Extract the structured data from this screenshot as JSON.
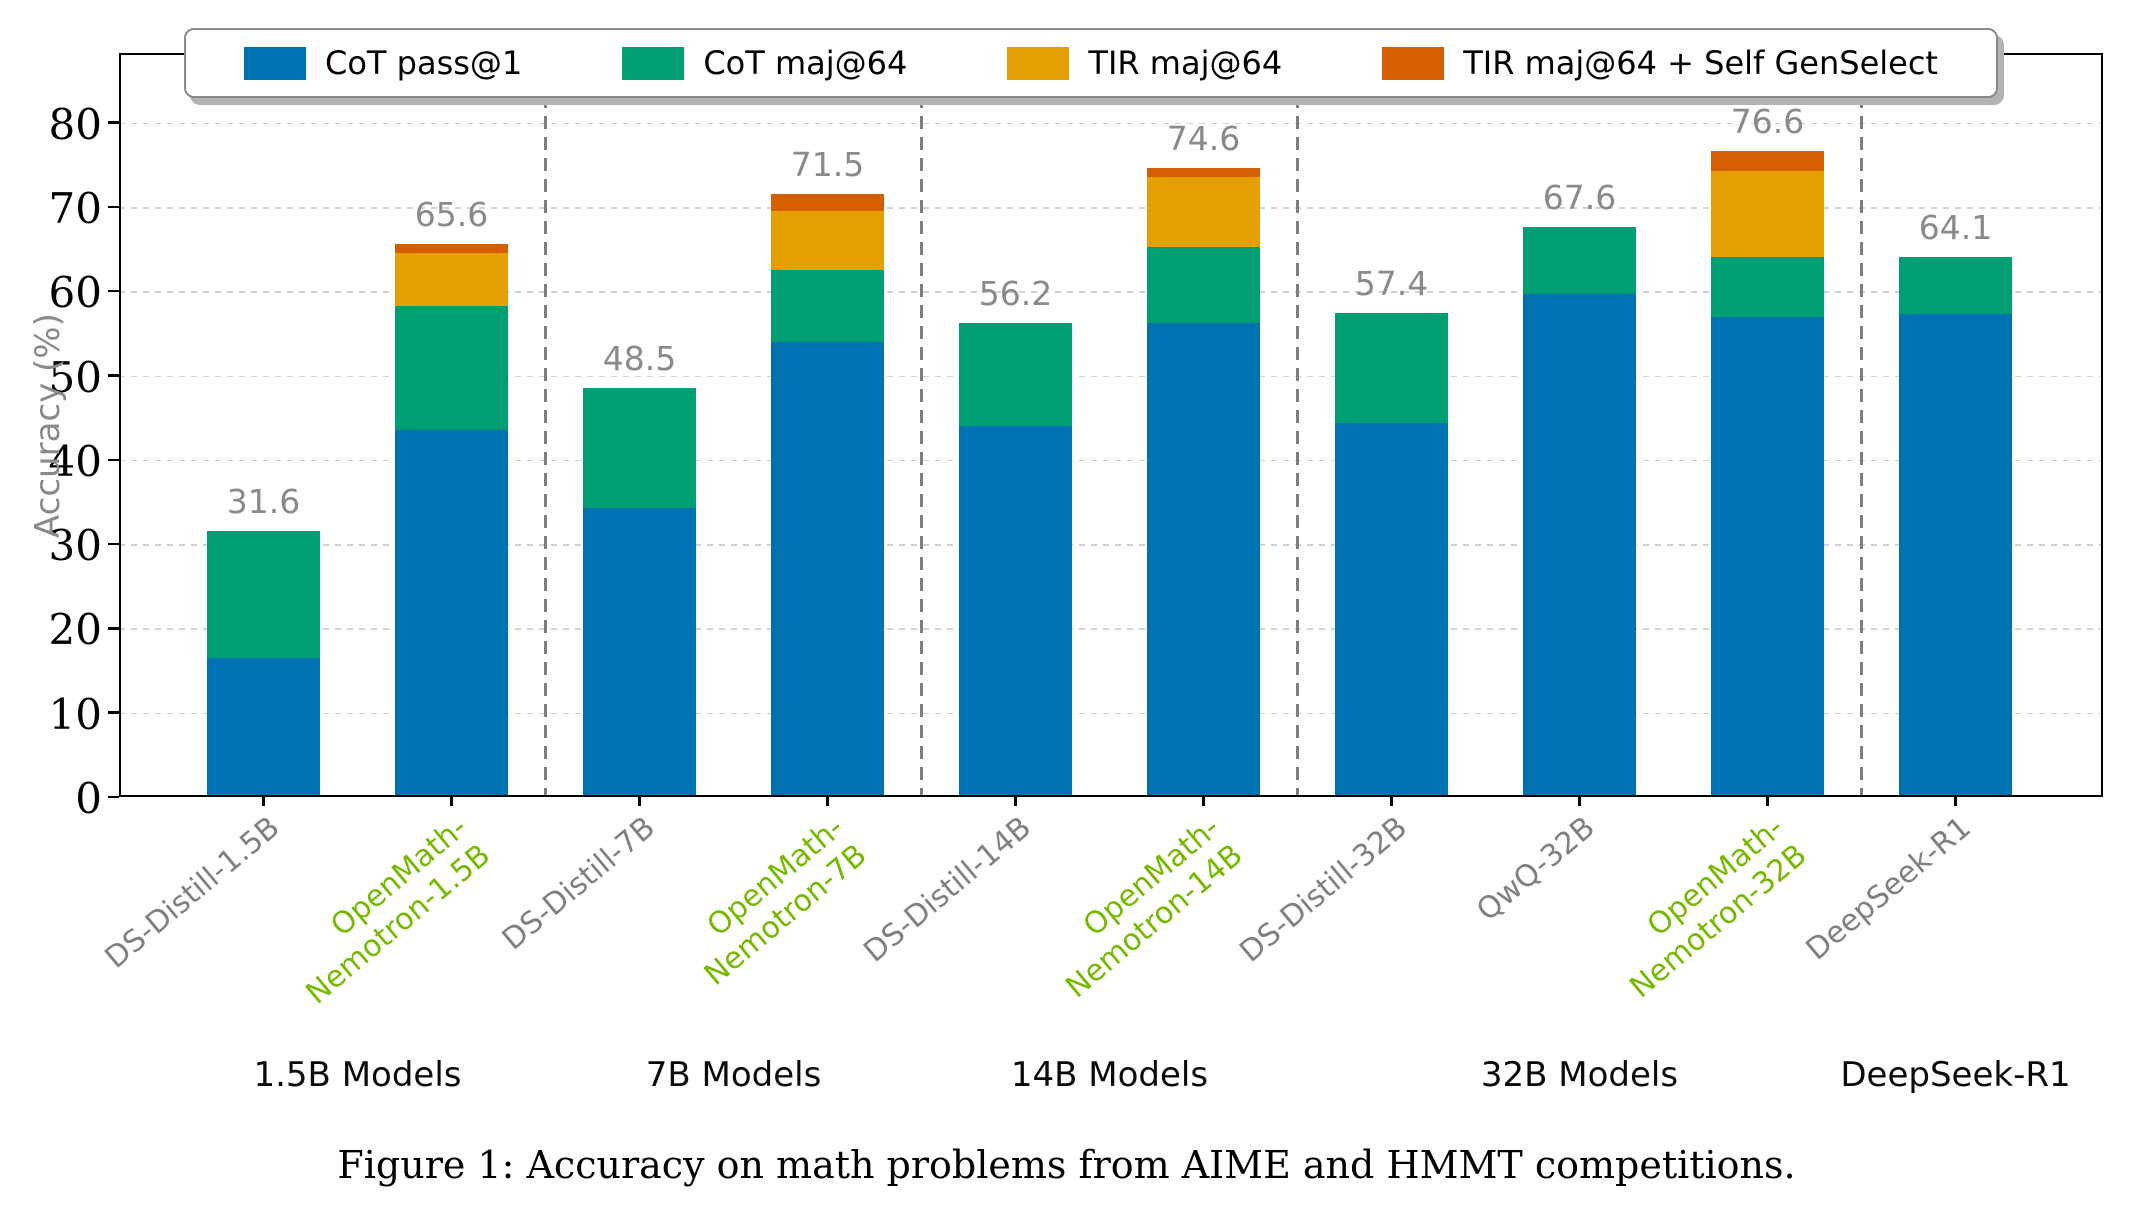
{
  "figure": {
    "caption": "Figure 1: Accuracy on math problems from AIME and HMMT competitions."
  },
  "chart_data": {
    "type": "bar",
    "stacked": true,
    "title": "",
    "xlabel": "",
    "ylabel": "Accuracy (%)",
    "ylim": [
      0,
      88
    ],
    "yticks": [
      0,
      10,
      20,
      30,
      40,
      50,
      60,
      70,
      80
    ],
    "grid": "horizontal dashed",
    "legend_position": "top center",
    "legend": [
      {
        "key": "cot_pass1",
        "label": "CoT pass@1",
        "color": "#0072B2"
      },
      {
        "key": "cot_maj64",
        "label": "CoT maj@64",
        "color": "#009E73"
      },
      {
        "key": "tir_maj64",
        "label": "TIR maj@64",
        "color": "#E69F00"
      },
      {
        "key": "tir_genselect",
        "label": "TIR maj@64 + Self GenSelect",
        "color": "#D55E00"
      }
    ],
    "tick_label_colors": {
      "baseline": "#808080",
      "openmath": "#76B900"
    },
    "bars": [
      {
        "model": "DS-Distill-1.5B",
        "style": "baseline",
        "group": 0,
        "cumulative": {
          "cot_pass1": 16.5,
          "cot_maj64": 31.6
        },
        "total_label": "31.6"
      },
      {
        "model": "OpenMath-\nNemotron-1.5B",
        "style": "openmath",
        "group": 0,
        "cumulative": {
          "cot_pass1": 43.5,
          "cot_maj64": 58.2,
          "tir_maj64": 64.5,
          "tir_genselect": 65.6
        },
        "total_label": "65.6"
      },
      {
        "model": "DS-Distill-7B",
        "style": "baseline",
        "group": 1,
        "cumulative": {
          "cot_pass1": 34.3,
          "cot_maj64": 48.5
        },
        "total_label": "48.5"
      },
      {
        "model": "OpenMath-\nNemotron-7B",
        "style": "openmath",
        "group": 1,
        "cumulative": {
          "cot_pass1": 54.0,
          "cot_maj64": 62.5,
          "tir_maj64": 69.5,
          "tir_genselect": 71.5
        },
        "total_label": "71.5"
      },
      {
        "model": "DS-Distill-14B",
        "style": "baseline",
        "group": 2,
        "cumulative": {
          "cot_pass1": 44.0,
          "cot_maj64": 56.2
        },
        "total_label": "56.2"
      },
      {
        "model": "OpenMath-\nNemotron-14B",
        "style": "openmath",
        "group": 2,
        "cumulative": {
          "cot_pass1": 56.2,
          "cot_maj64": 65.3,
          "tir_maj64": 73.5,
          "tir_genselect": 74.6
        },
        "total_label": "74.6"
      },
      {
        "model": "DS-Distill-32B",
        "style": "baseline",
        "group": 3,
        "cumulative": {
          "cot_pass1": 44.4,
          "cot_maj64": 57.4
        },
        "total_label": "57.4"
      },
      {
        "model": "QwQ-32B",
        "style": "baseline",
        "group": 3,
        "cumulative": {
          "cot_pass1": 59.7,
          "cot_maj64": 67.6
        },
        "total_label": "67.6"
      },
      {
        "model": "OpenMath-\nNemotron-32B",
        "style": "openmath",
        "group": 3,
        "cumulative": {
          "cot_pass1": 56.9,
          "cot_maj64": 64.1,
          "tir_maj64": 74.3,
          "tir_genselect": 76.6
        },
        "total_label": "76.6"
      },
      {
        "model": "DeepSeek-R1",
        "style": "baseline",
        "group": 4,
        "cumulative": {
          "cot_pass1": 57.3,
          "cot_maj64": 64.1
        },
        "total_label": "64.1"
      }
    ],
    "groups": [
      {
        "label": "1.5B Models"
      },
      {
        "label": "7B Models"
      },
      {
        "label": "14B Models"
      },
      {
        "label": "32B Models"
      },
      {
        "label": "DeepSeek-R1"
      }
    ],
    "separators_after_bar_index": [
      1,
      3,
      5,
      8
    ]
  }
}
